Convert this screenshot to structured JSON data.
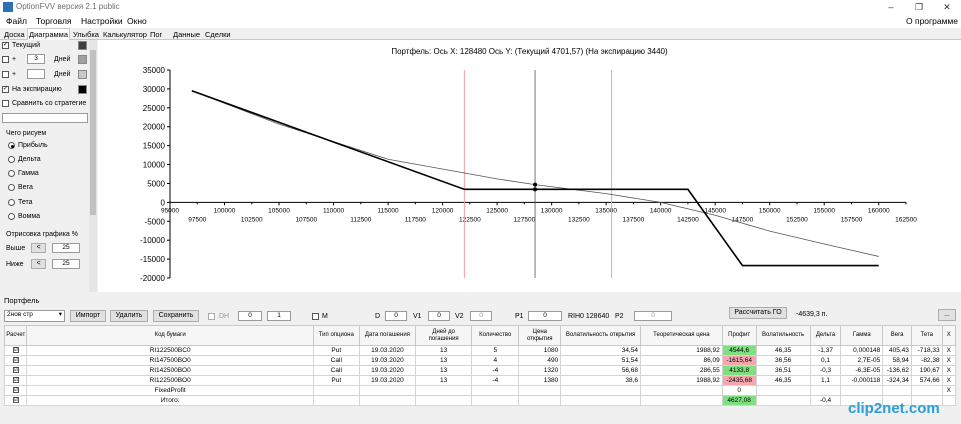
{
  "window": {
    "title": "OptionFVV версия 2.1 public",
    "minimize": "–",
    "restore": "❐",
    "close": "✕"
  },
  "menu": {
    "items": [
      "Файл",
      "Торговля",
      "Настройки",
      "Окно"
    ],
    "about": "О программе"
  },
  "tabs": [
    "Доска",
    "Диаграмма",
    "Улыбка",
    "Калькулятор",
    "Пог",
    "Данные",
    "Сделки"
  ],
  "left": {
    "current_label": "Текущий",
    "plus1": "+",
    "days1_value": "3",
    "days_label": "Дней",
    "plus2": "+",
    "days2_value": "",
    "expiry_label": "На экспирацию",
    "compare_label": "Сравнить со стратегие",
    "what_label": "Чего рисуем",
    "radios": [
      "Прибыль",
      "Дельта",
      "Гамма",
      "Вега",
      "Тета",
      "Вомма"
    ],
    "draw_label": "Отрисовка графика %",
    "above_label": "Выше",
    "above_value": "25",
    "below_label": "Ниже",
    "below_value": "25",
    "btn_left": "<"
  },
  "chart_title": "Портфель: Ось X: 128480 Ось Y:  (Текущий 4701,57)  (На экспирацию 3440)",
  "chart_data": {
    "type": "line",
    "title": "Портфель: Ось X: 128480 Ось Y:  (Текущий 4701,57)  (На экспирацию 3440)",
    "xlim": [
      95000,
      162500
    ],
    "ylim": [
      -20000,
      35000
    ],
    "x_ticks_upper": [
      95000,
      100000,
      105000,
      110000,
      115000,
      120000,
      125000,
      130000,
      135000,
      140000,
      145000,
      150000,
      155000,
      160000
    ],
    "x_ticks_lower": [
      97500,
      102500,
      107500,
      112500,
      117500,
      122500,
      127500,
      132500,
      137500,
      142500,
      147500,
      152500,
      157500,
      162500
    ],
    "y_ticks": [
      35000,
      30000,
      25000,
      20000,
      15000,
      10000,
      5000,
      0,
      -5000,
      -10000,
      -15000,
      -20000
    ],
    "cursor_x": 128480,
    "range_lines": [
      122000,
      135500
    ],
    "series": [
      {
        "values_expiry": [
          [
            97000,
            29500
          ],
          [
            122000,
            3440
          ],
          [
            142500,
            3440
          ],
          [
            147500,
            -16700
          ],
          [
            160000,
            -16700
          ]
        ]
      },
      {
        "values_current": [
          [
            97000,
            29500
          ],
          [
            105000,
            20700
          ],
          [
            115000,
            11400
          ],
          [
            125000,
            6200
          ],
          [
            128480,
            4701.57
          ],
          [
            135000,
            2300
          ],
          [
            140000,
            0
          ],
          [
            145000,
            -3400
          ],
          [
            150000,
            -7600
          ],
          [
            155000,
            -11000
          ],
          [
            160000,
            -14300
          ]
        ]
      }
    ],
    "point_current": [
      128480,
      4701.57
    ],
    "point_expiry": [
      128480,
      3440
    ]
  },
  "portfolio": {
    "label": "Портфель",
    "select_value": "2нов стр",
    "import": "Импорт",
    "delete": "Удалить",
    "save": "Сохранить",
    "dh_label": "DH",
    "spin1": "0",
    "spin2": "1",
    "m_label": "M",
    "d_label": "D",
    "d_value": "0",
    "v1_label": "V1",
    "v1_value": "0",
    "v2_label": "V2",
    "v2_value": "0",
    "p1_label": "P1",
    "p1_value": "0",
    "ticker": "RIH0 128640",
    "p2_label": "P2",
    "p2_value": "0",
    "calc_go": "Рассчитать ГО",
    "go_value": "-4639,3 п.",
    "more_btn": "..."
  },
  "table": {
    "headers": [
      "Расчет",
      "Код бумаги",
      "Тип опциона",
      "Дата погашения",
      "Дней до погашения",
      "Количество",
      "Цена открытия",
      "Волатильность открытия",
      "Теоретическая цена",
      "Профит",
      "Волатильность",
      "Дельта",
      "Гамма",
      "Вега",
      "Тета",
      "X"
    ],
    "rows": [
      [
        "☑",
        "RI122500BC0",
        "Put",
        "19.03.2020",
        "13",
        "5",
        "1080",
        "34,54",
        "1988,92",
        "4544,6",
        "46,35",
        "-1,37",
        "0,000148",
        "405,43",
        "-718,33",
        "X"
      ],
      [
        "☑",
        "RI147500BO0",
        "Call",
        "19.03.2020",
        "13",
        "4",
        "490",
        "51,54",
        "86,09",
        "-1615,64",
        "36,56",
        "0,1",
        "2,7E-05",
        "58,94",
        "-82,38",
        "X"
      ],
      [
        "☑",
        "RI142500BO0",
        "Call",
        "19.03.2020",
        "13",
        "-4",
        "1320",
        "56,68",
        "286,55",
        "4133,8",
        "36,51",
        "-0,3",
        "-6,3E-05",
        "-136,62",
        "190,67",
        "X"
      ],
      [
        "☑",
        "RI122500BO0",
        "Put",
        "19.03.2020",
        "13",
        "-4",
        "1380",
        "38,6",
        "1988,92",
        "-2435,68",
        "46,35",
        "1,1",
        "-0,000118",
        "-324,34",
        "574,66",
        "X"
      ],
      [
        "☑",
        "FixedProfit",
        "",
        "",
        "",
        "",
        "",
        "",
        "",
        "0",
        "",
        "",
        "",
        "",
        "",
        "X"
      ],
      [
        "☑",
        "Итого:",
        "",
        "",
        "",
        "",
        "",
        "",
        "",
        "4627,08",
        "",
        "-0,4",
        "",
        "",
        "",
        ""
      ]
    ],
    "profit_style": [
      "pos",
      "neg",
      "pos",
      "neg",
      "",
      "pos"
    ]
  },
  "watermark": "clip2net.com"
}
